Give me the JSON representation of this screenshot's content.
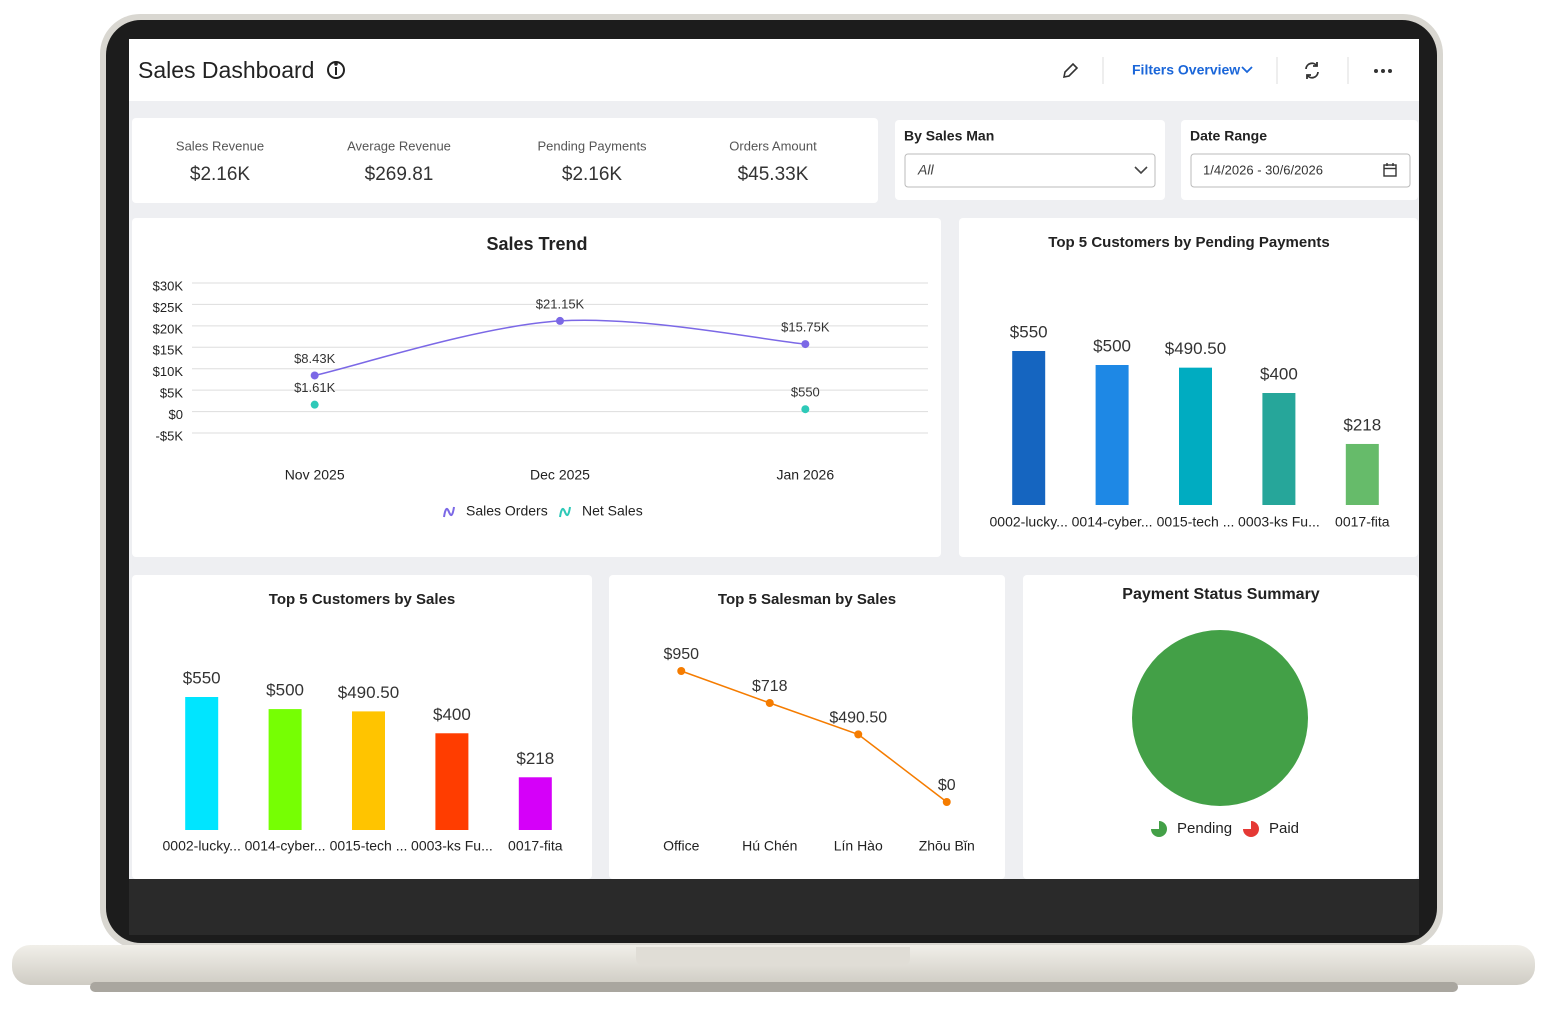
{
  "header": {
    "title": "Sales Dashboard",
    "filters_button": "Filters Overview"
  },
  "kpis": [
    {
      "label": "Sales Revenue",
      "value": "$2.16K"
    },
    {
      "label": "Average Revenue",
      "value": "$269.81"
    },
    {
      "label": "Pending Payments",
      "value": "$2.16K"
    },
    {
      "label": "Orders Amount",
      "value": "$45.33K"
    }
  ],
  "filters": [
    {
      "label": "By Sales Man",
      "value": "All"
    },
    {
      "label": "Date Range",
      "value": "1/4/2026 - 30/6/2026"
    }
  ],
  "charts": [
    {
      "type": "line",
      "title": "Sales Trend",
      "categories": [
        "Nov 2025",
        "Dec 2025",
        "Jan 2026"
      ],
      "ylim": [
        -5000,
        30000
      ],
      "yticks": [
        {
          "value": -5000,
          "label": "-$5K"
        },
        {
          "value": 0,
          "label": "$0"
        },
        {
          "value": 5000,
          "label": "$5K"
        },
        {
          "value": 10000,
          "label": "$10K"
        },
        {
          "value": 15000,
          "label": "$15K"
        },
        {
          "value": 20000,
          "label": "$20K"
        },
        {
          "value": 25000,
          "label": "$25K"
        },
        {
          "value": 30000,
          "label": "$30K"
        }
      ],
      "grid": true,
      "smooth": true,
      "series": [
        {
          "name": "Sales Orders",
          "color": "#7b68e6",
          "values": [
            8430,
            21150,
            15750
          ],
          "value_labels": [
            "$8.43K",
            "$21.15K",
            "$15.75K"
          ]
        },
        {
          "name": "Net Sales",
          "color": "#2ec9b8",
          "values": [
            1610,
            null,
            550
          ],
          "value_labels": [
            "$1.61K",
            null,
            "$550"
          ]
        }
      ]
    },
    {
      "type": "bar",
      "title": "Top 5 Customers by Pending Payments",
      "categories": [
        "0002-lucky...",
        "0014-cyber...",
        "0015-tech ...",
        "0003-ks Fu...",
        "0017-fita"
      ],
      "values": [
        550,
        500,
        490.5,
        400,
        218
      ],
      "value_labels": [
        "$550",
        "$500",
        "$490.50",
        "$400",
        "$218"
      ],
      "colors": [
        "#1565c0",
        "#1e88e5",
        "#00acc1",
        "#26a69a",
        "#66bb6a"
      ]
    },
    {
      "type": "bar",
      "title": "Top 5 Customers by Sales",
      "categories": [
        "0002-lucky...",
        "0014-cyber...",
        "0015-tech ...",
        "0003-ks Fu...",
        "0017-fita"
      ],
      "values": [
        550,
        500,
        490.5,
        400,
        218
      ],
      "value_labels": [
        "$550",
        "$500",
        "$490.50",
        "$400",
        "$218"
      ],
      "colors": [
        "#00e5ff",
        "#76ff03",
        "#ffc400",
        "#ff3d00",
        "#d500f9"
      ]
    },
    {
      "type": "line",
      "title": "Top 5 Salesman by Sales",
      "categories": [
        "Office",
        "Hú Chén",
        "Lín Hào",
        "Zhōu Bǐn"
      ],
      "values": [
        950,
        718,
        490.5,
        0
      ],
      "value_labels": [
        "$950",
        "$718",
        "$490.50",
        "$0"
      ],
      "color": "#f57c00"
    },
    {
      "type": "pie",
      "title": "Payment Status Summary",
      "categories": [
        "Pending",
        "Paid"
      ],
      "values": [
        100,
        0
      ],
      "colors": [
        "#43a047",
        "#e53935"
      ]
    }
  ]
}
